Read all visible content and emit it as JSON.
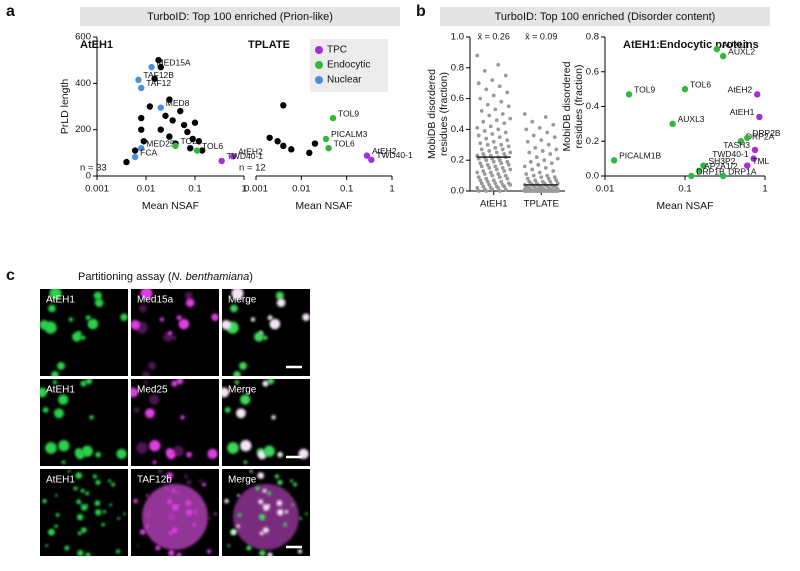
{
  "panel_labels": [
    "a",
    "b",
    "c"
  ],
  "headers": [
    "TurboID: Top 100 enriched (Prion-like)",
    "TurboID: Top 100 enriched (Disorder content)"
  ],
  "chart_data": [
    {
      "type": "scatter",
      "title": "AtEH1",
      "xlog": true,
      "xlim": [
        0.001,
        1
      ],
      "xticks": [
        0.001,
        0.01,
        0.1,
        1
      ],
      "ylim": [
        0,
        600
      ],
      "yticks": [
        0,
        200,
        400,
        600
      ],
      "ylabel": "PrLD length",
      "xlabel": "Mean NSAF",
      "annotation": "n = 33",
      "series": [
        {
          "color": "#000000",
          "x": [
            0.004,
            0.006,
            0.008,
            0.009,
            0.012,
            0.015,
            0.018,
            0.02,
            0.025,
            0.03,
            0.03,
            0.035,
            0.04,
            0.05,
            0.06,
            0.07,
            0.08,
            0.09,
            0.1,
            0.12,
            0.14,
            0.02,
            0.008
          ],
          "values": [
            60,
            110,
            250,
            150,
            300,
            420,
            500,
            200,
            260,
            330,
            170,
            240,
            140,
            280,
            220,
            190,
            120,
            160,
            230,
            150,
            110,
            470,
            200
          ]
        },
        {
          "color": "#4a8fdc",
          "x": [
            0.013,
            0.007,
            0.008,
            0.02,
            0.008,
            0.006
          ],
          "values": [
            470,
            415,
            380,
            295,
            120,
            82
          ],
          "labels": [
            "MED15A",
            "TAF12B",
            "TAF12",
            "MED8",
            "MED25",
            "FCA"
          ]
        },
        {
          "color": "#2fb83c",
          "x": [
            0.04,
            0.11
          ],
          "values": [
            130,
            110
          ],
          "labels": [
            "TOL9",
            "TOL6"
          ]
        },
        {
          "color": "#a12fe0",
          "x": [
            0.6,
            0.35
          ],
          "values": [
            85,
            65
          ],
          "labels": [
            "AtEH2",
            "TWD40-1"
          ]
        }
      ]
    },
    {
      "type": "scatter",
      "title": "TPLATE",
      "xlog": true,
      "xlim": [
        0.001,
        1
      ],
      "xticks": [
        0.001,
        0.01,
        0.1,
        1
      ],
      "ylim": [
        0,
        600
      ],
      "xlabel": "Mean NSAF",
      "annotation": "n = 12",
      "legend": "upper right",
      "series": [
        {
          "color": "#000000",
          "x": [
            0.004,
            0.003,
            0.004,
            0.006,
            0.002,
            0.02,
            0.015
          ],
          "values": [
            305,
            150,
            130,
            115,
            165,
            140,
            100
          ]
        },
        {
          "name": "TPC",
          "color": "#a12fe0",
          "x": [
            0.28,
            0.35
          ],
          "values": [
            88,
            70
          ],
          "labels": [
            "AtEH2",
            "TWD40-1"
          ]
        },
        {
          "name": "Endocytic",
          "color": "#2fb83c",
          "x": [
            0.05,
            0.035,
            0.04
          ],
          "values": [
            250,
            160,
            120
          ],
          "labels": [
            "TOL9",
            "PICALM3",
            "TOL6"
          ]
        },
        {
          "name": "Nuclear",
          "color": "#4a8fdc",
          "x": [],
          "values": []
        }
      ]
    },
    {
      "type": "strip",
      "categories": [
        "AtEH1",
        "TPLATE"
      ],
      "ylim": [
        0,
        1
      ],
      "yticks": [
        {
          "value": 0,
          "label": "0.0"
        },
        {
          "value": 0.2,
          "label": "0.2"
        },
        {
          "value": 0.4,
          "label": "0.4"
        },
        {
          "value": 0.6,
          "label": "0.6"
        },
        {
          "value": 0.8,
          "label": "0.8"
        },
        {
          "value": 1,
          "label": "1.0"
        }
      ],
      "ylabel": [
        "MobiDB disordered",
        "residues (fraction)"
      ],
      "mean_labels": [
        "x̄ = 0.26",
        "x̄ = 0.09"
      ],
      "medians": [
        0.22,
        0.04
      ],
      "series": [
        {
          "color": "#9a9a9a",
          "values": [
            0.88,
            0.82,
            0.78,
            0.75,
            0.72,
            0.7,
            0.68,
            0.66,
            0.64,
            0.62,
            0.6,
            0.58,
            0.56,
            0.55,
            0.53,
            0.52,
            0.5,
            0.49,
            0.47,
            0.46,
            0.45,
            0.44,
            0.42,
            0.41,
            0.4,
            0.39,
            0.38,
            0.37,
            0.36,
            0.35,
            0.34,
            0.33,
            0.32,
            0.31,
            0.3,
            0.3,
            0.29,
            0.28,
            0.27,
            0.27,
            0.26,
            0.25,
            0.25,
            0.24,
            0.24,
            0.23,
            0.23,
            0.22,
            0.22,
            0.22,
            0.21,
            0.21,
            0.2,
            0.2,
            0.19,
            0.19,
            0.18,
            0.18,
            0.17,
            0.17,
            0.16,
            0.16,
            0.15,
            0.15,
            0.14,
            0.14,
            0.13,
            0.13,
            0.12,
            0.12,
            0.11,
            0.11,
            0.1,
            0.1,
            0.09,
            0.09,
            0.08,
            0.08,
            0.07,
            0.07,
            0.06,
            0.06,
            0.05,
            0.05,
            0.05,
            0.04,
            0.04,
            0.04,
            0.03,
            0.03,
            0.03,
            0.02,
            0.02,
            0.02,
            0.01,
            0.01,
            0.01,
            0,
            0,
            0
          ]
        },
        {
          "color": "#9a9a9a",
          "values": [
            0.5,
            0.48,
            0.45,
            0.43,
            0.41,
            0.4,
            0.38,
            0.36,
            0.35,
            0.33,
            0.32,
            0.3,
            0.28,
            0.27,
            0.26,
            0.25,
            0.24,
            0.22,
            0.21,
            0.2,
            0.19,
            0.18,
            0.17,
            0.16,
            0.15,
            0.14,
            0.13,
            0.12,
            0.11,
            0.1,
            0.1,
            0.09,
            0.09,
            0.08,
            0.08,
            0.07,
            0.07,
            0.06,
            0.06,
            0.06,
            0.05,
            0.05,
            0.05,
            0.05,
            0.04,
            0.04,
            0.04,
            0.04,
            0.04,
            0.03,
            0.03,
            0.03,
            0.03,
            0.03,
            0.03,
            0.02,
            0.02,
            0.02,
            0.02,
            0.02,
            0.02,
            0.02,
            0.01,
            0.01,
            0.01,
            0.01,
            0.01,
            0.01,
            0.01,
            0.01,
            0,
            0,
            0,
            0,
            0,
            0,
            0,
            0,
            0,
            0,
            0,
            0,
            0,
            0,
            0,
            0,
            0,
            0,
            0,
            0,
            0,
            0,
            0,
            0,
            0,
            0,
            0,
            0,
            0,
            0
          ]
        }
      ]
    },
    {
      "type": "scatter",
      "title": "AtEH1:Endocytic proteins",
      "xlog": true,
      "xlim": [
        0.01,
        1
      ],
      "xticks": [
        0.01,
        0.1,
        1
      ],
      "ylim": [
        0,
        0.8
      ],
      "yticks": [
        {
          "value": 0,
          "label": "0.0"
        },
        {
          "value": 0.2,
          "label": "0.2"
        },
        {
          "value": 0.4,
          "label": "0.4"
        },
        {
          "value": 0.6,
          "label": "0.6"
        },
        {
          "value": 0.8,
          "label": "0.8"
        }
      ],
      "ylabel": [
        "MobiDB disordered",
        "residues (fraction)"
      ],
      "xlabel": "Mean NSAF",
      "series": [
        {
          "color": "#2fb83c",
          "x": [
            0.25,
            0.3,
            0.02,
            0.1,
            0.07,
            0.5,
            0.6,
            0.17,
            0.15,
            0.12,
            0.3,
            0.013
          ],
          "values": [
            0.73,
            0.69,
            0.47,
            0.5,
            0.3,
            0.2,
            0.22,
            0.06,
            0.03,
            0.0,
            0.0,
            0.09
          ],
          "labels": [
            "AUXL1",
            "AUXL2",
            "TOL9",
            "TOL6",
            "AUXL3",
            "DRP2A",
            "DRP2B",
            "SH3P2",
            "AP2A1/2",
            "DRP1B",
            "DRP1A",
            "PICALM1B"
          ]
        },
        {
          "color": "#a12fe0",
          "x": [
            0.8,
            0.85,
            0.75,
            0.72,
            0.6
          ],
          "values": [
            0.47,
            0.34,
            0.15,
            0.1,
            0.06
          ],
          "labels": [
            "AtEH2",
            "AtEH1",
            "TASH3",
            "TWD40-1",
            "TML"
          ]
        }
      ]
    }
  ],
  "microscopy": {
    "title": [
      "Partitioning assay (",
      "N. benthamiana",
      ")"
    ],
    "rows": [
      [
        "AtEH1",
        "Med15a",
        "Merge"
      ],
      [
        "AtEH1",
        "Med25",
        "Merge"
      ],
      [
        "AtEH1",
        "TAF12b",
        "Merge"
      ]
    ]
  }
}
